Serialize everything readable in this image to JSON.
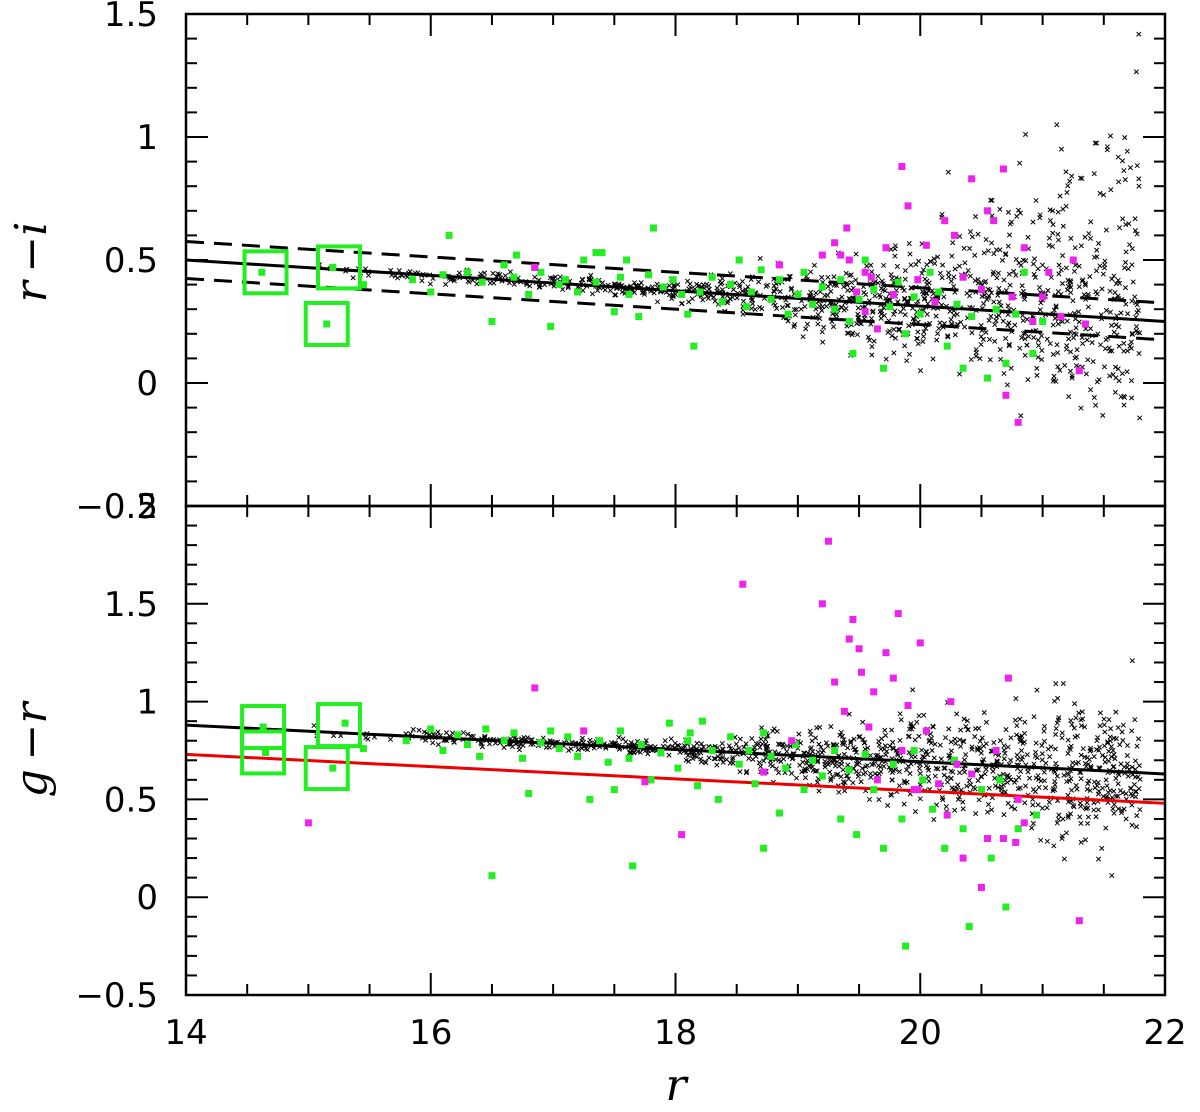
{
  "chart_data": [
    {
      "type": "scatter",
      "panel": "top",
      "xlabel": "",
      "ylabel": "r −i",
      "xlim": [
        14,
        22
      ],
      "ylim": [
        -0.5,
        1.5
      ],
      "y_ticks": [
        -0.5,
        0,
        0.5,
        1,
        1.5
      ],
      "y_tick_labels": [
        "−0.5",
        "0",
        "0.5",
        "1",
        "1.5"
      ],
      "lines": [
        {
          "style": "solid",
          "color": "#000000",
          "x": [
            14,
            22
          ],
          "y": [
            0.5,
            0.25
          ]
        },
        {
          "style": "dashed",
          "color": "#000000",
          "x": [
            14,
            22
          ],
          "y": [
            0.575,
            0.325
          ]
        },
        {
          "style": "dashed",
          "color": "#000000",
          "x": [
            14,
            22
          ],
          "y": [
            0.425,
            0.175
          ]
        }
      ],
      "highlight_boxes": [
        {
          "x": 14.65,
          "y": 0.45
        },
        {
          "x": 15.25,
          "y": 0.47
        },
        {
          "x": 15.15,
          "y": 0.24
        }
      ],
      "series": [
        {
          "marker": "cross",
          "color": "#000000",
          "points": []
        },
        {
          "marker": "square",
          "color": "#22ee22",
          "points": [
            [
              14.62,
              0.45
            ],
            [
              15.2,
              0.47
            ],
            [
              15.15,
              0.24
            ],
            [
              15.45,
              0.4
            ],
            [
              15.85,
              0.42
            ],
            [
              16.0,
              0.37
            ],
            [
              16.1,
              0.44
            ],
            [
              16.15,
              0.6
            ],
            [
              16.3,
              0.45
            ],
            [
              16.42,
              0.41
            ],
            [
              16.5,
              0.25
            ],
            [
              16.6,
              0.48
            ],
            [
              16.68,
              0.43
            ],
            [
              16.7,
              0.52
            ],
            [
              16.8,
              0.36
            ],
            [
              16.9,
              0.45
            ],
            [
              16.98,
              0.23
            ],
            [
              17.05,
              0.4
            ],
            [
              17.1,
              0.42
            ],
            [
              17.2,
              0.37
            ],
            [
              17.25,
              0.5
            ],
            [
              17.35,
              0.41
            ],
            [
              17.4,
              0.53
            ],
            [
              17.5,
              0.29
            ],
            [
              17.55,
              0.43
            ],
            [
              17.62,
              0.36
            ],
            [
              17.7,
              0.27
            ],
            [
              17.78,
              0.44
            ],
            [
              17.82,
              0.63
            ],
            [
              17.9,
              0.39
            ],
            [
              17.98,
              0.42
            ],
            [
              18.05,
              0.36
            ],
            [
              18.1,
              0.28
            ],
            [
              18.2,
              0.37
            ],
            [
              18.3,
              0.43
            ],
            [
              18.38,
              0.33
            ],
            [
              18.45,
              0.4
            ],
            [
              18.52,
              0.5
            ],
            [
              18.58,
              0.31
            ],
            [
              18.62,
              0.37
            ],
            [
              18.7,
              0.46
            ],
            [
              18.78,
              0.34
            ],
            [
              18.85,
              0.42
            ],
            [
              18.92,
              0.28
            ],
            [
              19.0,
              0.36
            ],
            [
              19.05,
              0.45
            ],
            [
              19.12,
              0.32
            ],
            [
              19.2,
              0.39
            ],
            [
              19.3,
              0.3
            ],
            [
              19.35,
              0.42
            ],
            [
              19.42,
              0.25
            ],
            [
              19.5,
              0.34
            ],
            [
              19.55,
              0.5
            ],
            [
              19.62,
              0.38
            ],
            [
              19.7,
              0.06
            ],
            [
              19.75,
              0.31
            ],
            [
              19.82,
              0.41
            ],
            [
              19.88,
              0.2
            ],
            [
              19.95,
              0.35
            ],
            [
              20.0,
              0.28
            ],
            [
              20.08,
              0.45
            ],
            [
              20.15,
              0.37
            ],
            [
              20.22,
              0.15
            ],
            [
              20.3,
              0.32
            ],
            [
              20.35,
              0.06
            ],
            [
              20.42,
              0.27
            ],
            [
              20.5,
              0.38
            ],
            [
              20.55,
              0.02
            ],
            [
              20.62,
              0.3
            ],
            [
              20.7,
              0.08
            ],
            [
              20.78,
              0.28
            ],
            [
              20.85,
              0.45
            ],
            [
              20.92,
              0.12
            ],
            [
              21.0,
              0.25
            ],
            [
              17.35,
              0.53
            ],
            [
              18.15,
              0.15
            ],
            [
              19.45,
              0.12
            ],
            [
              16.85,
              0.47
            ],
            [
              17.6,
              0.5
            ]
          ]
        },
        {
          "marker": "square",
          "color": "#ee22ee",
          "points": [
            [
              16.85,
              0.47
            ],
            [
              18.85,
              0.48
            ],
            [
              19.2,
              0.52
            ],
            [
              19.3,
              0.57
            ],
            [
              19.35,
              0.52
            ],
            [
              19.4,
              0.63
            ],
            [
              19.42,
              0.5
            ],
            [
              19.48,
              0.37
            ],
            [
              19.55,
              0.45
            ],
            [
              19.6,
              0.43
            ],
            [
              19.65,
              0.22
            ],
            [
              19.72,
              0.55
            ],
            [
              19.78,
              0.36
            ],
            [
              19.85,
              0.88
            ],
            [
              19.9,
              0.72
            ],
            [
              19.98,
              0.42
            ],
            [
              20.05,
              0.56
            ],
            [
              20.12,
              0.33
            ],
            [
              20.2,
              0.66
            ],
            [
              20.28,
              0.6
            ],
            [
              20.35,
              0.43
            ],
            [
              20.42,
              0.83
            ],
            [
              20.5,
              0.38
            ],
            [
              20.55,
              0.7
            ],
            [
              20.6,
              0.66
            ],
            [
              20.68,
              0.87
            ],
            [
              20.75,
              0.35
            ],
            [
              20.8,
              -0.16
            ],
            [
              20.85,
              0.55
            ],
            [
              20.92,
              0.25
            ],
            [
              21.0,
              0.35
            ],
            [
              21.05,
              0.45
            ],
            [
              21.15,
              0.27
            ],
            [
              21.25,
              0.5
            ],
            [
              21.3,
              0.05
            ],
            [
              21.35,
              0.24
            ],
            [
              20.7,
              -0.05
            ],
            [
              19.55,
              0.29
            ]
          ]
        }
      ]
    },
    {
      "type": "scatter",
      "panel": "bottom",
      "xlabel": "r",
      "ylabel": "g −r",
      "xlim": [
        14,
        22
      ],
      "ylim": [
        -0.5,
        2.0
      ],
      "x_ticks": [
        14,
        16,
        18,
        20,
        22
      ],
      "x_tick_labels": [
        "14",
        "16",
        "18",
        "20",
        "22"
      ],
      "y_ticks": [
        -0.5,
        0,
        0.5,
        1,
        1.5,
        2
      ],
      "y_tick_labels": [
        "−0.5",
        "0",
        "0.5",
        "1",
        "1.5",
        "2"
      ],
      "lines": [
        {
          "style": "solid",
          "color": "#000000",
          "x": [
            14,
            22
          ],
          "y": [
            0.88,
            0.63
          ]
        },
        {
          "style": "solid",
          "color": "#ee0000",
          "x": [
            14,
            22
          ],
          "y": [
            0.73,
            0.48
          ]
        }
      ],
      "highlight_boxes": [
        {
          "x": 14.63,
          "y": 0.87
        },
        {
          "x": 14.63,
          "y": 0.74
        },
        {
          "x": 15.25,
          "y": 0.88
        },
        {
          "x": 15.15,
          "y": 0.66
        }
      ],
      "series": [
        {
          "marker": "cross",
          "color": "#000000",
          "points": []
        },
        {
          "marker": "square",
          "color": "#22ee22",
          "points": [
            [
              14.63,
              0.87
            ],
            [
              14.65,
              0.74
            ],
            [
              15.3,
              0.89
            ],
            [
              15.2,
              0.66
            ],
            [
              15.45,
              0.76
            ],
            [
              15.8,
              0.8
            ],
            [
              16.0,
              0.86
            ],
            [
              16.1,
              0.75
            ],
            [
              16.22,
              0.83
            ],
            [
              16.3,
              0.78
            ],
            [
              16.4,
              0.72
            ],
            [
              16.45,
              0.86
            ],
            [
              16.5,
              0.11
            ],
            [
              16.6,
              0.8
            ],
            [
              16.68,
              0.84
            ],
            [
              16.75,
              0.71
            ],
            [
              16.8,
              0.53
            ],
            [
              16.9,
              0.79
            ],
            [
              16.98,
              0.85
            ],
            [
              17.05,
              0.76
            ],
            [
              17.12,
              0.82
            ],
            [
              17.2,
              0.72
            ],
            [
              17.3,
              0.5
            ],
            [
              17.38,
              0.8
            ],
            [
              17.45,
              0.69
            ],
            [
              17.5,
              0.55
            ],
            [
              17.55,
              0.85
            ],
            [
              17.62,
              0.71
            ],
            [
              17.65,
              0.16
            ],
            [
              17.72,
              0.78
            ],
            [
              17.8,
              0.6
            ],
            [
              17.88,
              0.74
            ],
            [
              17.95,
              0.89
            ],
            [
              18.02,
              0.66
            ],
            [
              18.1,
              0.8
            ],
            [
              18.18,
              0.57
            ],
            [
              18.22,
              0.9
            ],
            [
              18.3,
              0.75
            ],
            [
              18.35,
              0.5
            ],
            [
              18.45,
              0.82
            ],
            [
              18.52,
              0.68
            ],
            [
              18.6,
              0.75
            ],
            [
              18.65,
              0.58
            ],
            [
              18.72,
              0.25
            ],
            [
              18.78,
              0.72
            ],
            [
              18.85,
              0.43
            ],
            [
              18.9,
              0.66
            ],
            [
              18.98,
              0.78
            ],
            [
              19.05,
              0.55
            ],
            [
              19.12,
              0.7
            ],
            [
              19.2,
              0.62
            ],
            [
              19.3,
              0.75
            ],
            [
              19.35,
              0.4
            ],
            [
              19.42,
              0.65
            ],
            [
              19.48,
              0.32
            ],
            [
              19.55,
              0.73
            ],
            [
              19.62,
              0.55
            ],
            [
              19.7,
              0.25
            ],
            [
              19.78,
              0.68
            ],
            [
              19.85,
              0.4
            ],
            [
              19.88,
              -0.25
            ],
            [
              19.95,
              0.75
            ],
            [
              20.02,
              0.6
            ],
            [
              20.1,
              0.45
            ],
            [
              20.2,
              0.25
            ],
            [
              20.28,
              0.7
            ],
            [
              20.35,
              0.35
            ],
            [
              20.4,
              -0.15
            ],
            [
              20.5,
              0.55
            ],
            [
              20.58,
              0.2
            ],
            [
              20.65,
              0.6
            ],
            [
              20.7,
              -0.05
            ],
            [
              20.8,
              0.35
            ],
            [
              20.95,
              0.42
            ],
            [
              18.72,
              0.84
            ],
            [
              18.12,
              0.84
            ]
          ]
        },
        {
          "marker": "square",
          "color": "#ee22ee",
          "points": [
            [
              15.0,
              0.38
            ],
            [
              16.85,
              1.07
            ],
            [
              17.25,
              0.85
            ],
            [
              17.75,
              0.59
            ],
            [
              18.05,
              0.32
            ],
            [
              18.55,
              1.6
            ],
            [
              18.72,
              0.64
            ],
            [
              18.95,
              0.8
            ],
            [
              19.2,
              1.5
            ],
            [
              19.25,
              1.82
            ],
            [
              19.3,
              1.1
            ],
            [
              19.38,
              0.95
            ],
            [
              19.42,
              1.32
            ],
            [
              19.45,
              1.42
            ],
            [
              19.5,
              1.27
            ],
            [
              19.52,
              1.15
            ],
            [
              19.58,
              0.87
            ],
            [
              19.62,
              1.05
            ],
            [
              19.65,
              0.6
            ],
            [
              19.72,
              1.25
            ],
            [
              19.78,
              1.12
            ],
            [
              19.82,
              1.45
            ],
            [
              19.85,
              0.75
            ],
            [
              19.9,
              0.98
            ],
            [
              19.95,
              0.55
            ],
            [
              20.0,
              1.3
            ],
            [
              20.05,
              0.85
            ],
            [
              20.15,
              0.58
            ],
            [
              20.22,
              0.42
            ],
            [
              20.3,
              0.68
            ],
            [
              20.35,
              0.2
            ],
            [
              20.42,
              0.63
            ],
            [
              20.5,
              0.05
            ],
            [
              20.55,
              0.3
            ],
            [
              20.62,
              0.75
            ],
            [
              20.68,
              0.3
            ],
            [
              20.72,
              1.12
            ],
            [
              20.78,
              0.28
            ],
            [
              20.85,
              0.38
            ],
            [
              21.3,
              -0.12
            ],
            [
              20.8,
              0.5
            ],
            [
              19.98,
              0.55
            ],
            [
              20.25,
              1.0
            ]
          ]
        }
      ]
    }
  ]
}
